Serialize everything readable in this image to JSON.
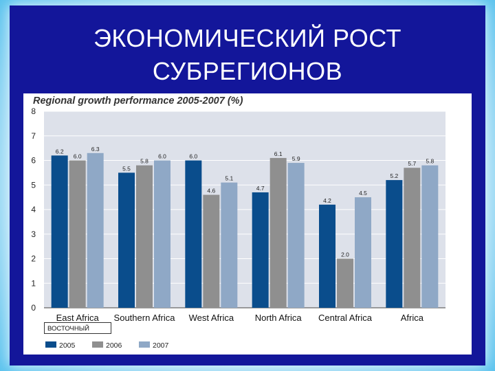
{
  "slide": {
    "title_line1": "ЭКОНОМИЧЕСКИЙ РОСТ",
    "title_line2": "СУБРЕГИОНОВ"
  },
  "annotation": "ВОСТОЧНЫЙ",
  "colors": {
    "2005": "#0a4d8c",
    "2006": "#8f8f8f",
    "2007": "#8fa8c6",
    "plot_bg": "#dde1ea",
    "slide_bg": "#13169a"
  },
  "chart_data": {
    "type": "bar",
    "title": "Regional growth performance 2005-2007 (%)",
    "categories": [
      "East Africa",
      "Southern Africa",
      "West Africa",
      "North Africa",
      "Central Africa",
      "Africa"
    ],
    "series": [
      {
        "name": "2005",
        "values": [
          6.2,
          5.5,
          6.0,
          4.7,
          4.2,
          5.2
        ],
        "labels": [
          "6.2",
          "5.5",
          "6.0",
          "4.7",
          "4.2",
          "5.2"
        ]
      },
      {
        "name": "2006",
        "values": [
          6.0,
          5.8,
          4.6,
          6.1,
          2.0,
          5.7
        ],
        "labels": [
          "6.0",
          "5.8",
          "4.6",
          "6.1",
          "2.0",
          "5.7"
        ]
      },
      {
        "name": "2007",
        "values": [
          6.3,
          6.0,
          5.1,
          5.9,
          4.5,
          5.8
        ],
        "labels": [
          "6.3",
          "6.0",
          "5.1",
          "5.9",
          "4.5",
          "5.8"
        ]
      }
    ],
    "ylim": [
      0,
      8
    ],
    "yticks": [
      0,
      1,
      2,
      3,
      4,
      5,
      6,
      7,
      8
    ],
    "grid": true,
    "legend": "bottom-left"
  }
}
